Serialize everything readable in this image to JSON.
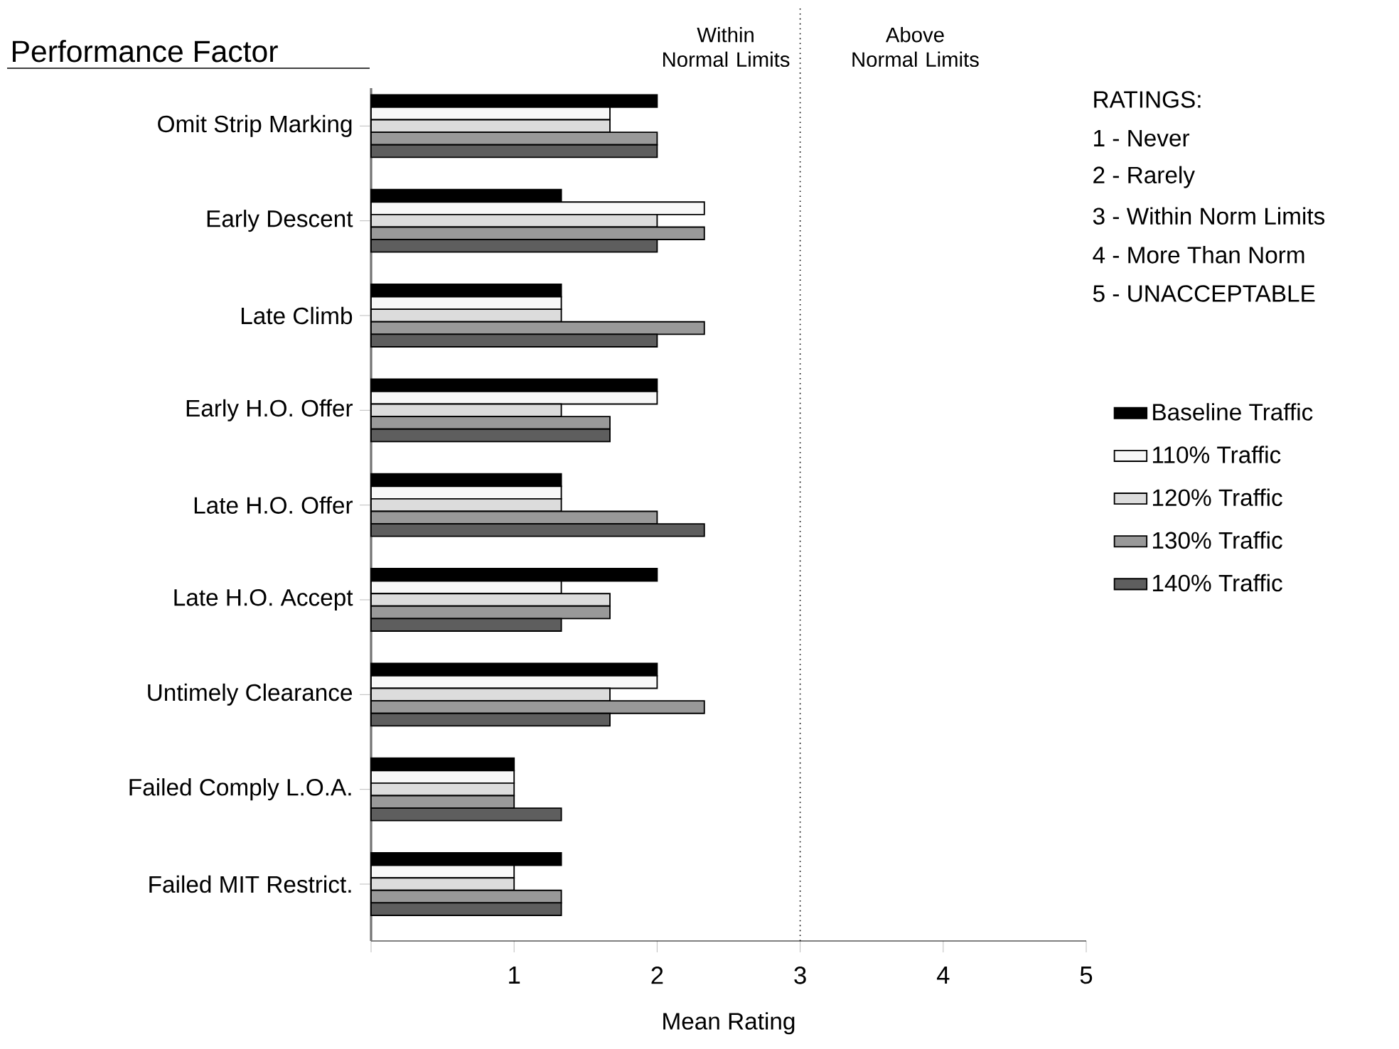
{
  "chart_data": {
    "type": "bar",
    "orientation": "horizontal",
    "xlabel": "Mean Rating",
    "categories": [
      "Omit Strip Marking",
      "Early Descent",
      "Late Climb",
      "Early H.O. Offer",
      "Late H.O. Offer",
      "Late H.O. Accept",
      "Untimely Clearance",
      "Failed Comply L.O.A.",
      "Failed MIT Restrict."
    ],
    "series": [
      {
        "name": "Baseline Traffic",
        "color": "#000000",
        "values": [
          2,
          1.33,
          1.33,
          2,
          1.33,
          2,
          2,
          1,
          1.33
        ]
      },
      {
        "name": "110% Traffic",
        "color": "#f8f8f8",
        "values": [
          1.67,
          2.33,
          1.33,
          2,
          1.33,
          1.33,
          2,
          1,
          1
        ]
      },
      {
        "name": "120% Traffic",
        "color": "#dcdcdc",
        "values": [
          1.67,
          2,
          1.33,
          1.33,
          1.33,
          1.67,
          1.67,
          1,
          1
        ]
      },
      {
        "name": "130% Traffic",
        "color": "#999999",
        "values": [
          2,
          2.33,
          2.33,
          1.67,
          2,
          1.67,
          2.33,
          1,
          1.33
        ]
      },
      {
        "name": "140% Traffic",
        "color": "#5e5e5e",
        "values": [
          2,
          2,
          2,
          1.67,
          2.33,
          1.33,
          1.67,
          1.33,
          1.33
        ]
      }
    ],
    "xlim": [
      0,
      5
    ],
    "xticks": [
      {
        "value": 0,
        "label": null
      },
      1,
      2,
      3,
      4,
      5
    ],
    "ref_lines": [
      {
        "axis": "x",
        "value": 3,
        "line_style": "dotted"
      }
    ],
    "annotations": [
      "Performance Factor",
      "Within Normal Limits",
      "Above Normal Limits",
      "RATINGS:",
      "1 - Never",
      "2 - Rarely",
      "3 - Within Norm Limits",
      "4 - More Than Norm",
      "5 - UNACCEPTABLE"
    ],
    "legend": "right"
  }
}
